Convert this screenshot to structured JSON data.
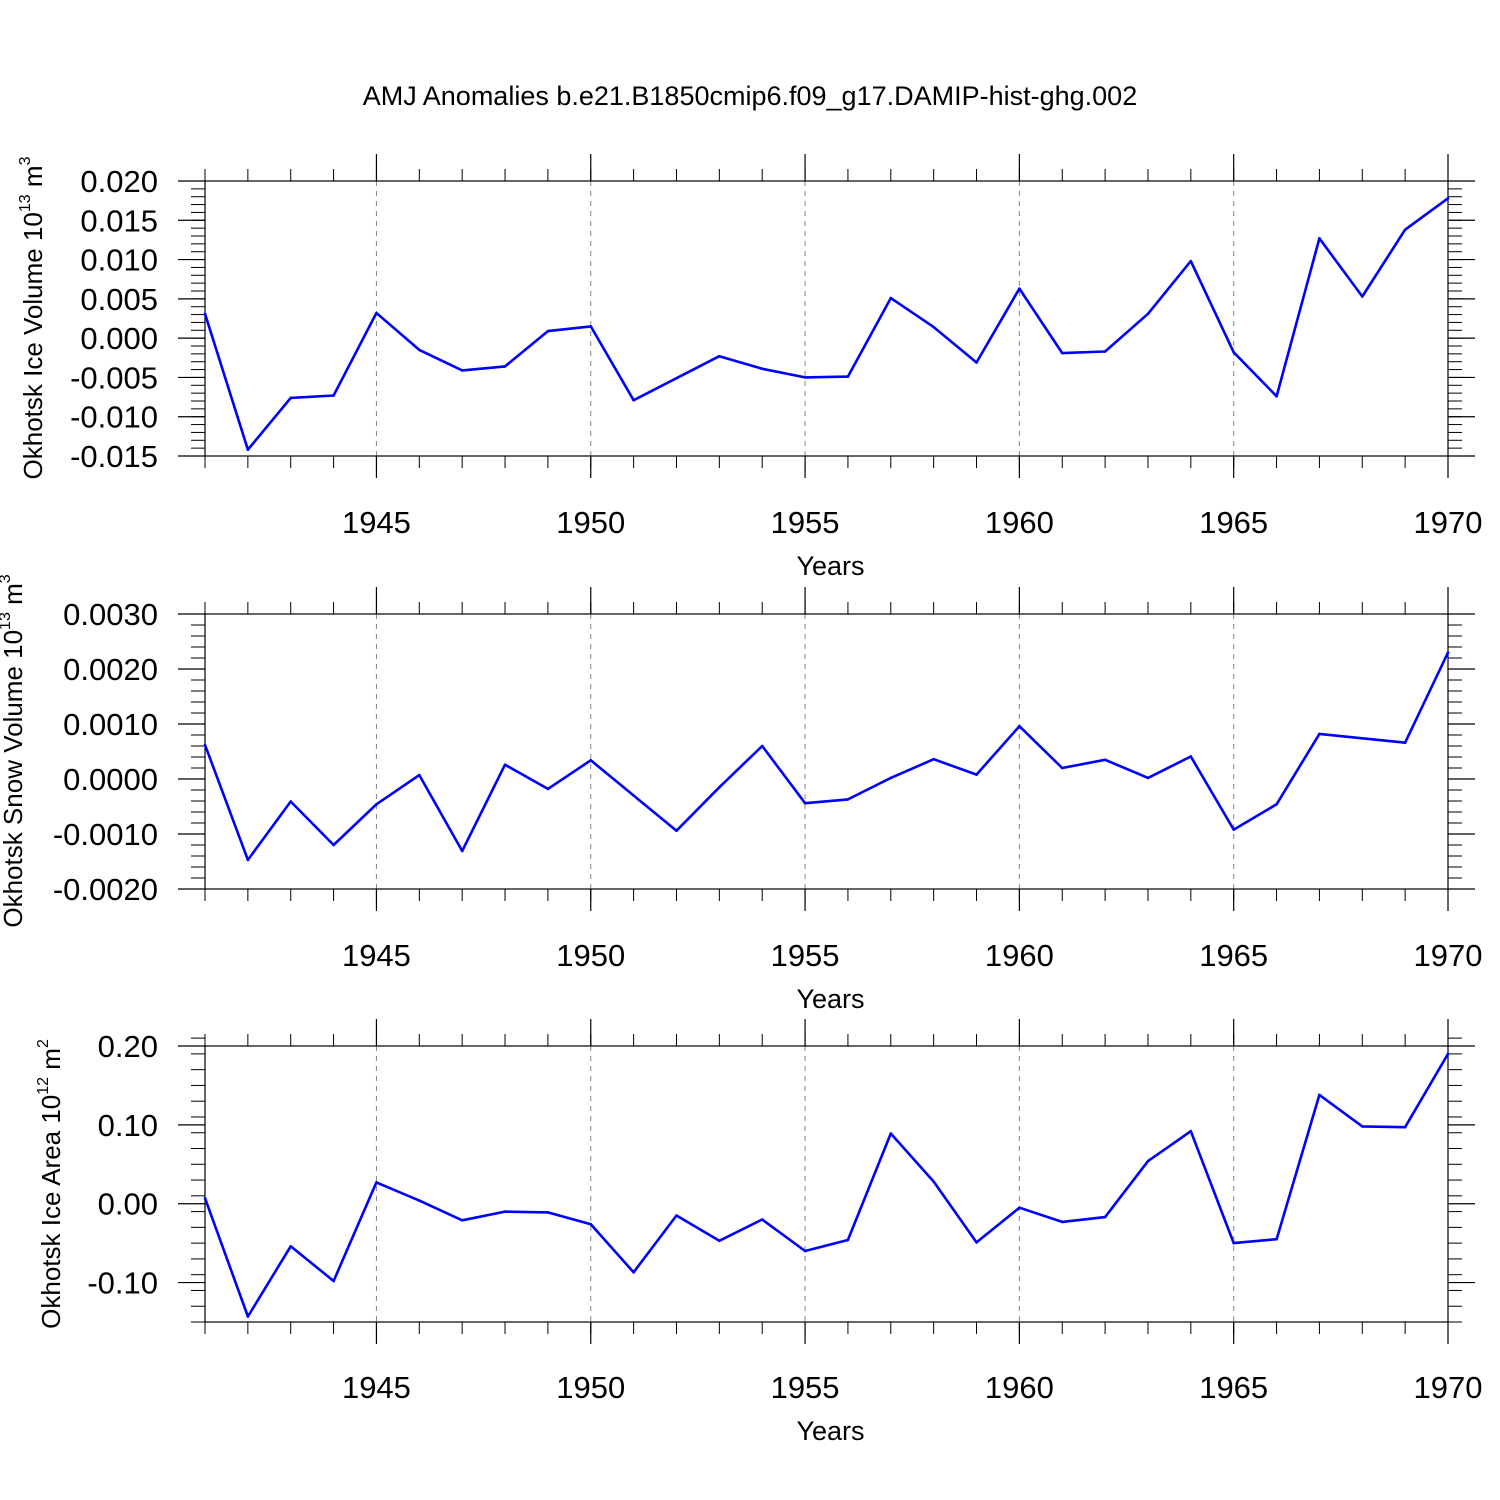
{
  "title": "AMJ Anomalies b.e21.B1850cmip6.f09_g17.DAMIP-hist-ghg.002",
  "line_color": "#0000ff",
  "chart_data": [
    {
      "type": "line",
      "xlabel": "Years",
      "ylabel": "Okhotsk Ice Volume 10",
      "ylabel_exp": "13",
      "ylabel_unit": "m",
      "ylabel_unit_exp": "3",
      "xlim": [
        1941,
        1970
      ],
      "ylim": [
        -0.015,
        0.02
      ],
      "yticks": [
        -0.015,
        -0.01,
        -0.005,
        0.0,
        0.005,
        0.01,
        0.015,
        0.02
      ],
      "ytick_labels": [
        "-0.015",
        "-0.010",
        "-0.005",
        "0.000",
        "0.005",
        "0.010",
        "0.015",
        "0.020"
      ],
      "ytick_minor_step": 0.001,
      "xticks": [
        1945,
        1950,
        1955,
        1960,
        1965,
        1970
      ],
      "xtick_labels": [
        "1945",
        "1950",
        "1955",
        "1960",
        "1965",
        "1970"
      ],
      "grid": "dashed vertical at major x ticks",
      "x": [
        1941,
        1942,
        1943,
        1944,
        1945,
        1946,
        1947,
        1948,
        1949,
        1950,
        1951,
        1952,
        1953,
        1954,
        1955,
        1956,
        1957,
        1958,
        1959,
        1960,
        1961,
        1962,
        1963,
        1964,
        1965,
        1966,
        1967,
        1968,
        1969,
        1970
      ],
      "values": [
        0.0031,
        -0.0142,
        -0.0076,
        -0.0073,
        0.0032,
        -0.0015,
        -0.0041,
        -0.0036,
        0.0009,
        0.0015,
        -0.0079,
        -0.0051,
        -0.0023,
        -0.0039,
        -0.005,
        -0.0049,
        0.0051,
        0.0014,
        -0.0031,
        0.0063,
        -0.0019,
        -0.0017,
        0.0031,
        0.0098,
        -0.0018,
        -0.0074,
        0.0127,
        0.0053,
        0.0138,
        0.0178
      ]
    },
    {
      "type": "line",
      "xlabel": "Years",
      "ylabel": "Okhotsk Snow Volume 10",
      "ylabel_exp": "13",
      "ylabel_unit": "m",
      "ylabel_unit_exp": "3",
      "xlim": [
        1941,
        1970
      ],
      "ylim": [
        -0.002,
        0.003
      ],
      "yticks": [
        -0.002,
        -0.001,
        0.0,
        0.001,
        0.002,
        0.003
      ],
      "ytick_labels": [
        "-0.0020",
        "-0.0010",
        "0.0000",
        "0.0010",
        "0.0020",
        "0.0030"
      ],
      "ytick_minor_step": 0.0002,
      "xticks": [
        1945,
        1950,
        1955,
        1960,
        1965,
        1970
      ],
      "xtick_labels": [
        "1945",
        "1950",
        "1955",
        "1960",
        "1965",
        "1970"
      ],
      "grid": "dashed vertical at major x ticks",
      "x": [
        1941,
        1942,
        1943,
        1944,
        1945,
        1946,
        1947,
        1948,
        1949,
        1950,
        1951,
        1952,
        1953,
        1954,
        1955,
        1956,
        1957,
        1958,
        1959,
        1960,
        1961,
        1962,
        1963,
        1964,
        1965,
        1966,
        1967,
        1968,
        1969,
        1970
      ],
      "values": [
        0.00062,
        -0.00147,
        -0.00041,
        -0.0012,
        -0.00046,
        7e-05,
        -0.00131,
        0.00026,
        -0.00018,
        0.00034,
        -0.0003,
        -0.00094,
        -0.00015,
        0.0006,
        -0.00044,
        -0.00037,
        2e-05,
        0.00036,
        8e-05,
        0.00096,
        0.0002,
        0.00035,
        2e-05,
        0.00041,
        -0.00092,
        -0.00046,
        0.00082,
        0.00074,
        0.00066,
        0.0023
      ]
    },
    {
      "type": "line",
      "xlabel": "Years",
      "ylabel": "Okhotsk Ice Area 10",
      "ylabel_exp": "12",
      "ylabel_unit": "m",
      "ylabel_unit_exp": "2",
      "xlim": [
        1941,
        1970
      ],
      "ylim": [
        -0.15,
        0.2
      ],
      "yticks": [
        -0.1,
        0.0,
        0.1,
        0.2
      ],
      "ytick_labels": [
        "-0.10",
        "0.00",
        "0.10",
        "0.20"
      ],
      "ytick_minor_step": 0.02,
      "xticks": [
        1945,
        1950,
        1955,
        1960,
        1965,
        1970
      ],
      "xtick_labels": [
        "1945",
        "1950",
        "1955",
        "1960",
        "1965",
        "1970"
      ],
      "grid": "dashed vertical at major x ticks",
      "x": [
        1941,
        1942,
        1943,
        1944,
        1945,
        1946,
        1947,
        1948,
        1949,
        1950,
        1951,
        1952,
        1953,
        1954,
        1955,
        1956,
        1957,
        1958,
        1959,
        1960,
        1961,
        1962,
        1963,
        1964,
        1965,
        1966,
        1967,
        1968,
        1969,
        1970
      ],
      "values": [
        0.007,
        -0.143,
        -0.054,
        -0.098,
        0.027,
        0.004,
        -0.021,
        -0.01,
        -0.011,
        -0.026,
        -0.087,
        -0.015,
        -0.047,
        -0.02,
        -0.06,
        -0.046,
        0.089,
        0.028,
        -0.049,
        -0.005,
        -0.023,
        -0.017,
        0.054,
        0.092,
        -0.05,
        -0.045,
        0.138,
        0.098,
        0.097,
        0.19
      ]
    }
  ]
}
